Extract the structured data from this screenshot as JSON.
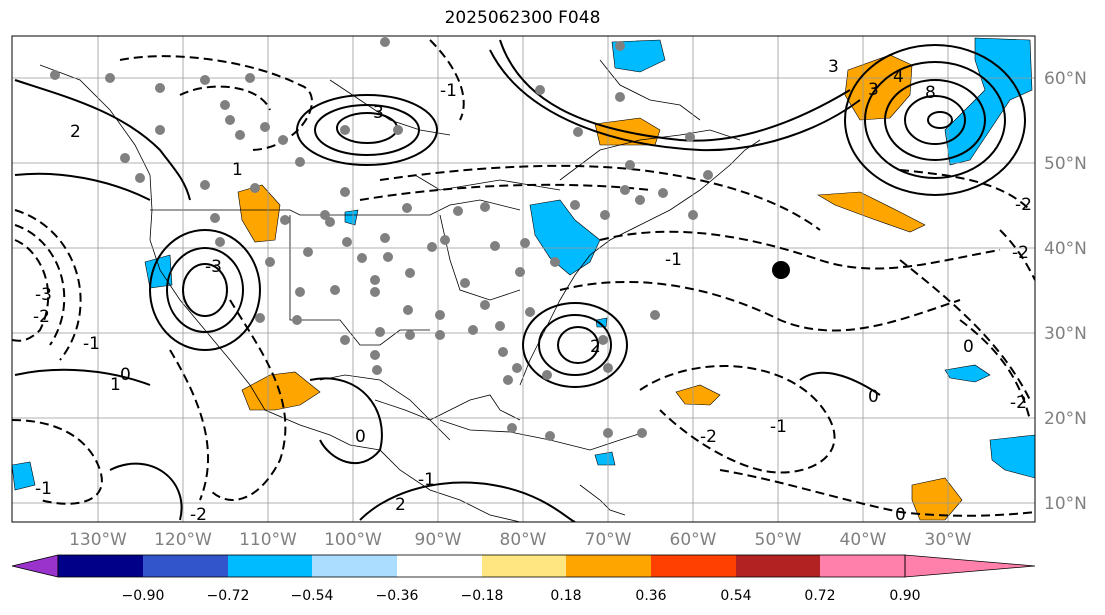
{
  "title": "2025062300 F048",
  "map": {
    "lat_labels": [
      "60°N",
      "50°N",
      "40°N",
      "30°N",
      "20°N",
      "10°N"
    ],
    "lon_labels": [
      "130°W",
      "120°W",
      "110°W",
      "100°W",
      "90°W",
      "80°W",
      "70°W",
      "60°W",
      "50°W",
      "40°W",
      "30°W"
    ],
    "contour_labels": [
      "3",
      "-1",
      "-3",
      "-2",
      "-1",
      "0",
      "-1",
      "2",
      "3",
      "1",
      "-3",
      "0",
      "2",
      "-2",
      "-1",
      "-2",
      "4",
      "8",
      "3",
      "-2",
      "0",
      "-1",
      "-2",
      "0",
      "0",
      "-1",
      "1",
      "2",
      "-2"
    ]
  },
  "colorbar": {
    "ticks": [
      "−0.90",
      "−0.72",
      "−0.54",
      "−0.36",
      "−0.18",
      "0.18",
      "0.36",
      "0.54",
      "0.72",
      "0.90"
    ],
    "colors": [
      "#9933cc",
      "#000088",
      "#3355cc",
      "#00bbff",
      "#aaddff",
      "#ffffff",
      "#ffe680",
      "#ffa500",
      "#ff4000",
      "#b22222",
      "#ff80aa"
    ]
  }
}
